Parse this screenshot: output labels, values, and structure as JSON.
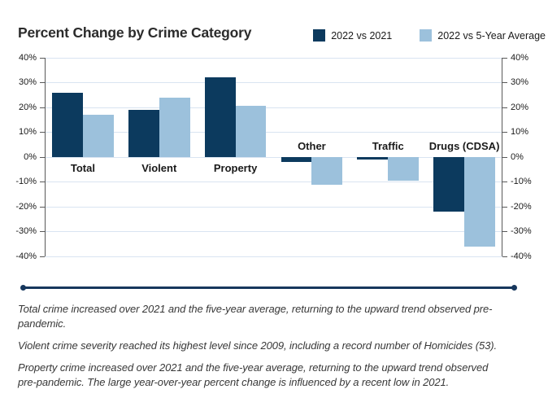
{
  "title": "Percent Change by Crime Category",
  "legend": [
    {
      "label": "2022 vs 2021",
      "color": "#0c3a5e"
    },
    {
      "label": "2022 vs 5-Year Average",
      "color": "#9cc1dc"
    }
  ],
  "chart_data": {
    "type": "bar",
    "title": "Percent Change by Crime Category",
    "categories": [
      "Total",
      "Violent",
      "Property",
      "Other",
      "Traffic",
      "Drugs (CDSA)"
    ],
    "series": [
      {
        "name": "2022 vs 2021",
        "color": "#0c3a5e",
        "values": [
          26,
          19,
          32,
          -2,
          -1,
          -22
        ]
      },
      {
        "name": "2022 vs 5-Year Average",
        "color": "#9cc1dc",
        "values": [
          17,
          24,
          20.5,
          -11,
          -9.5,
          -36
        ]
      }
    ],
    "xlabel": "",
    "ylabel": "",
    "ylim": [
      -40,
      40
    ],
    "ytick_step": 10,
    "tick_suffix": "%",
    "grid": true,
    "legend_position": "top-right",
    "dual_y_axis": true,
    "colors": {
      "grid": "#d9e4f1",
      "axis": "#595959",
      "tick_label": "#1a1a1a"
    }
  },
  "divider_color": "#17375d",
  "notes": [
    "Total crime increased over 2021 and the five-year average, returning to the upward trend observed pre-pandemic.",
    "Violent crime severity reached its highest level since 2009, including a record number of Homicides (53).",
    "Property crime increased over 2021 and the five-year average, returning to the upward trend observed pre-pandemic. The large year-over-year percent change is influenced by a recent low in 2021."
  ]
}
